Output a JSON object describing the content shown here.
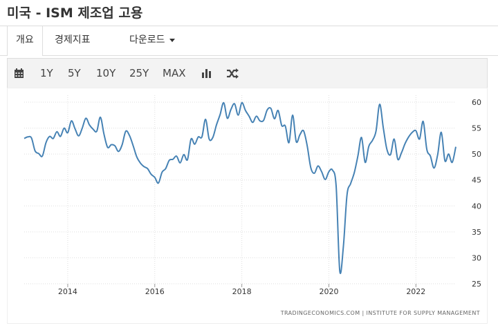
{
  "page": {
    "title": "미국 - ISM 제조업 고용"
  },
  "tabs": [
    {
      "label": "개요"
    },
    {
      "label": "경제지표"
    },
    {
      "label": "다운로드"
    }
  ],
  "toolbar": {
    "calendar_icon": "calendar-icon",
    "ranges": [
      "1Y",
      "5Y",
      "10Y",
      "25Y",
      "MAX"
    ],
    "chart_type_icon": "bar-chart-icon",
    "compare_icon": "shuffle-icon"
  },
  "colors": {
    "line": "#4682b4",
    "grid": "#dddddd",
    "axis_text": "#333333"
  },
  "chart_data": {
    "type": "line",
    "title": "",
    "xlabel": "",
    "ylabel": "",
    "x_ticks": [
      "2014",
      "2016",
      "2018",
      "2020",
      "2022"
    ],
    "y_ticks": [
      25,
      30,
      35,
      40,
      45,
      50,
      55,
      60
    ],
    "ylim": [
      25,
      60
    ],
    "xlim": [
      "2013-01",
      "2022-12"
    ],
    "y_axis_side": "right",
    "grid": true,
    "source": "TRADINGECONOMICS.COM | INSTITUTE FOR SUPPLY MANAGEMENT",
    "series": [
      {
        "x": [
          "2013-01",
          "2013-02",
          "2013-03",
          "2013-04",
          "2013-05",
          "2013-06",
          "2013-07",
          "2013-08",
          "2013-09",
          "2013-10",
          "2013-11",
          "2013-12",
          "2014-01",
          "2014-02",
          "2014-03",
          "2014-04",
          "2014-05",
          "2014-06",
          "2014-07",
          "2014-08",
          "2014-09",
          "2014-10",
          "2014-11",
          "2014-12",
          "2015-01",
          "2015-02",
          "2015-03",
          "2015-04",
          "2015-05",
          "2015-06",
          "2015-07",
          "2015-08",
          "2015-09",
          "2015-10",
          "2015-11",
          "2015-12",
          "2016-01",
          "2016-02",
          "2016-03",
          "2016-04",
          "2016-05",
          "2016-06",
          "2016-07",
          "2016-08",
          "2016-09",
          "2016-10",
          "2016-11",
          "2016-12",
          "2017-01",
          "2017-02",
          "2017-03",
          "2017-04",
          "2017-05",
          "2017-06",
          "2017-07",
          "2017-08",
          "2017-09",
          "2017-10",
          "2017-11",
          "2017-12",
          "2018-01",
          "2018-02",
          "2018-03",
          "2018-04",
          "2018-05",
          "2018-06",
          "2018-07",
          "2018-08",
          "2018-09",
          "2018-10",
          "2018-11",
          "2018-12",
          "2019-01",
          "2019-02",
          "2019-03",
          "2019-04",
          "2019-05",
          "2019-06",
          "2019-07",
          "2019-08",
          "2019-09",
          "2019-10",
          "2019-11",
          "2019-12",
          "2020-01",
          "2020-02",
          "2020-03",
          "2020-04",
          "2020-05",
          "2020-06",
          "2020-07",
          "2020-08",
          "2020-09",
          "2020-10",
          "2020-11",
          "2020-12",
          "2021-01",
          "2021-02",
          "2021-03",
          "2021-04",
          "2021-05",
          "2021-06",
          "2021-07",
          "2021-08",
          "2021-09",
          "2021-10",
          "2021-11",
          "2021-12",
          "2022-01",
          "2022-02",
          "2022-03",
          "2022-04",
          "2022-05",
          "2022-06",
          "2022-07",
          "2022-08",
          "2022-09",
          "2022-10",
          "2022-11",
          "2022-12"
        ],
        "values": [
          53.0,
          53.3,
          53.1,
          50.6,
          50.1,
          49.6,
          52.2,
          53.4,
          53.0,
          54.3,
          53.4,
          55.0,
          54.1,
          56.4,
          54.9,
          53.5,
          55.0,
          56.9,
          55.6,
          54.8,
          54.4,
          57.1,
          53.8,
          51.3,
          51.8,
          51.6,
          50.5,
          51.8,
          54.4,
          53.6,
          51.7,
          49.5,
          48.3,
          47.6,
          47.2,
          46.1,
          45.5,
          44.4,
          46.5,
          47.2,
          48.8,
          49.0,
          49.6,
          48.3,
          49.9,
          48.9,
          52.9,
          51.9,
          53.3,
          53.3,
          56.7,
          52.9,
          53.2,
          55.6,
          57.6,
          59.9,
          56.9,
          58.6,
          59.7,
          57.5,
          59.9,
          58.4,
          57.3,
          56.1,
          57.3,
          56.4,
          56.5,
          58.5,
          58.8,
          56.8,
          58.4,
          55.5,
          55.4,
          52.2,
          57.5,
          52.4,
          53.7,
          54.5,
          51.7,
          47.4,
          46.3,
          47.7,
          46.6,
          45.1,
          46.6,
          46.9,
          43.8,
          27.5,
          32.1,
          42.1,
          44.3,
          46.4,
          49.6,
          53.2,
          48.4,
          51.5,
          52.6,
          54.4,
          59.6,
          55.1,
          50.9,
          49.9,
          52.9,
          49.0,
          50.2,
          52.0,
          53.3,
          54.2,
          54.5,
          52.9,
          56.3,
          50.9,
          49.6,
          47.3,
          49.9,
          54.2,
          48.7,
          50.0,
          48.4,
          51.4
        ]
      }
    ]
  }
}
